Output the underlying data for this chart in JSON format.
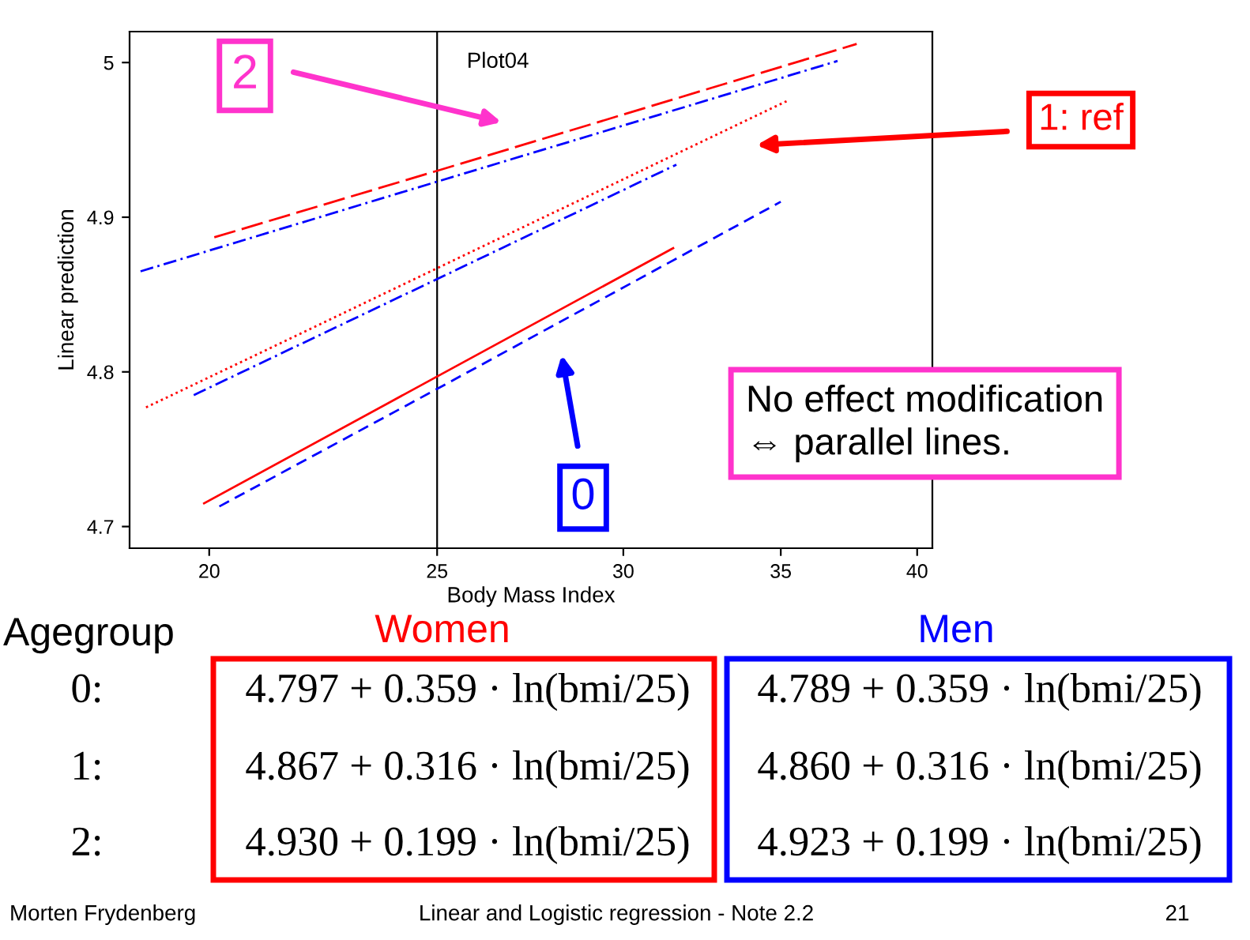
{
  "chart_data": {
    "type": "line",
    "title": "Plot04",
    "xlabel": "Body Mass Index",
    "ylabel": "Linear prediction",
    "log": "x",
    "xlim": [
      18.5,
      40.6
    ],
    "ylim": [
      4.686,
      5.02
    ],
    "xticks": [
      20,
      25,
      30,
      35,
      40
    ],
    "yticks": [
      4.7,
      4.8,
      4.9,
      5
    ],
    "grid": false,
    "legend": false,
    "marker": "none",
    "ref_lines": [
      {
        "axis": "x",
        "value": 25,
        "color": "#000000"
      }
    ],
    "series": [
      {
        "color": "#ff0000",
        "line_style": "solid",
        "x": [
          19.9,
          25,
          31.5
        ],
        "values": [
          4.715,
          4.797,
          4.88
        ]
      },
      {
        "color": "#0000ff",
        "line_style": "dashed",
        "x": [
          20.2,
          25,
          35
        ],
        "values": [
          4.713,
          4.789,
          4.91
        ]
      },
      {
        "color": "#ff0000",
        "line_style": "dotted",
        "x": [
          18.8,
          25,
          35.2
        ],
        "values": [
          4.777,
          4.867,
          4.975
        ]
      },
      {
        "color": "#0000ff",
        "line_style": "dashdot",
        "x": [
          19.7,
          25,
          31.6
        ],
        "values": [
          4.785,
          4.86,
          4.934
        ]
      },
      {
        "color": "#ff0000",
        "line_style": "longdash",
        "x": [
          20.1,
          25,
          37.7
        ],
        "values": [
          4.887,
          4.93,
          5.012
        ]
      },
      {
        "color": "#0000ff",
        "line_style": "dashdot",
        "x": [
          18.7,
          25,
          37
        ],
        "values": [
          4.865,
          4.923,
          5.001
        ]
      }
    ],
    "annotations": [
      "2",
      "1: ref",
      "0",
      "No effect modification\n⇔ parallel lines.",
      "Agegroup",
      "Women",
      "Men",
      "0:",
      "1:",
      "2:",
      "4.797 + 0.359 · ln(bmi/25)",
      "4.867 + 0.316 · ln(bmi/25)",
      "4.930 + 0.199 · ln(bmi/25)",
      "4.789 + 0.359 · ln(bmi/25)",
      "4.860 + 0.316 · ln(bmi/25)",
      "4.923 + 0.199 · ln(bmi/25)",
      "Morten Frydenberg",
      "Linear and Logistic regression - Note 2.2",
      "21"
    ]
  }
}
